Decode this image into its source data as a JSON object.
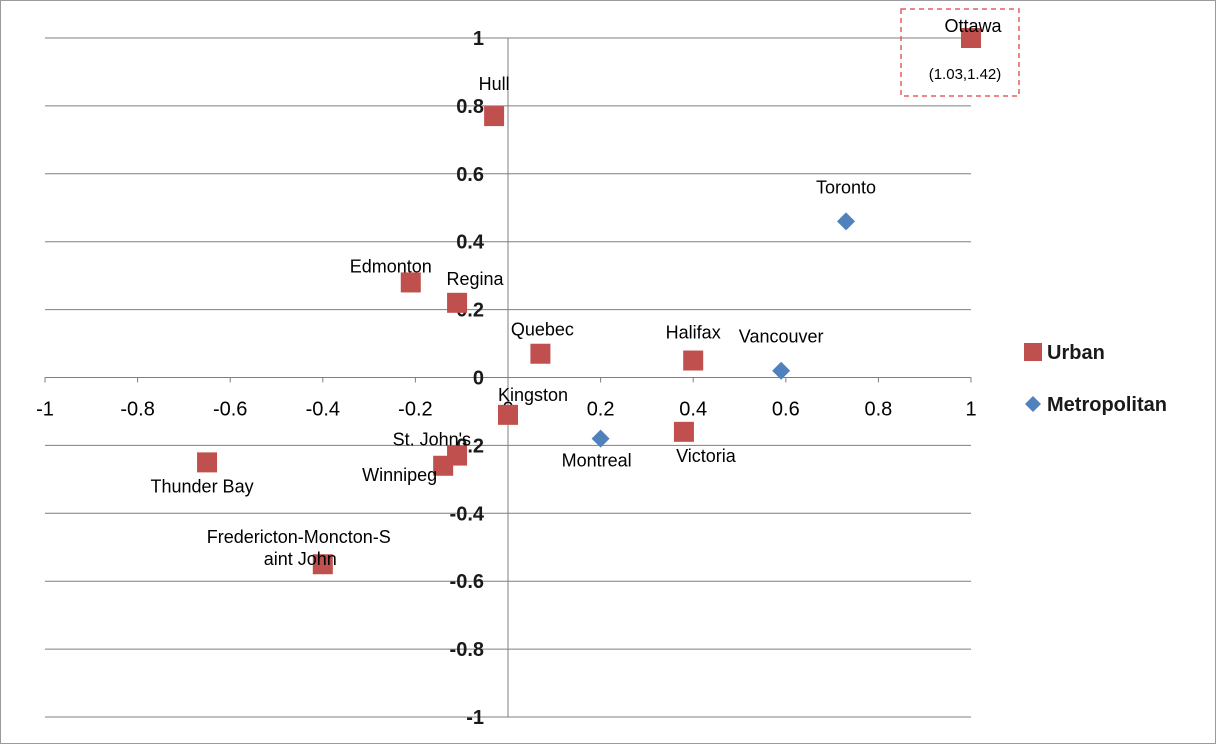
{
  "chart_data": {
    "type": "scatter",
    "title": "",
    "xlabel": "",
    "ylabel": "",
    "xlim": [
      -1,
      1
    ],
    "ylim": [
      -1,
      1
    ],
    "x_ticks": [
      "-1",
      "-0.8",
      "-0.6",
      "-0.4",
      "-0.2",
      "0",
      "0.2",
      "0.4",
      "0.6",
      "0.8",
      "1"
    ],
    "y_ticks": [
      "1",
      "0.8",
      "0.6",
      "0.4",
      "0.2",
      "0",
      "-0.2",
      "-0.4",
      "-0.6",
      "-0.8",
      "-1"
    ],
    "grid": "horizontal",
    "legend_position": "right",
    "series": [
      {
        "name": "Urban",
        "marker": "square",
        "color": "#c0504d",
        "points": [
          {
            "label": "Ottawa",
            "x": 1.0,
            "y": 1.0
          },
          {
            "label": "Hull",
            "x": -0.03,
            "y": 0.77
          },
          {
            "label": "Edmonton",
            "x": -0.21,
            "y": 0.28
          },
          {
            "label": "Regina",
            "x": -0.11,
            "y": 0.22
          },
          {
            "label": "Quebec",
            "x": 0.07,
            "y": 0.07
          },
          {
            "label": "Halifax",
            "x": 0.4,
            "y": 0.05
          },
          {
            "label": "Kingston",
            "x": 0.0,
            "y": -0.11
          },
          {
            "label": "Victoria",
            "x": 0.38,
            "y": -0.16
          },
          {
            "label": "St. John's",
            "x": -0.11,
            "y": -0.23
          },
          {
            "label": "Winnipeg",
            "x": -0.14,
            "y": -0.26
          },
          {
            "label": "Thunder Bay",
            "x": -0.65,
            "y": -0.25
          },
          {
            "label": "Fredericton-Moncton-S\naint John",
            "x": -0.4,
            "y": -0.55
          }
        ]
      },
      {
        "name": "Metropolitan",
        "marker": "diamond",
        "color": "#4f81bd",
        "points": [
          {
            "label": "Toronto",
            "x": 0.73,
            "y": 0.46
          },
          {
            "label": "Vancouver",
            "x": 0.59,
            "y": 0.02
          },
          {
            "label": "Montreal",
            "x": 0.2,
            "y": -0.18
          }
        ]
      }
    ],
    "annotations": [
      {
        "text": "(1.03,1.42)",
        "near": "Ottawa",
        "boxed": true
      }
    ]
  }
}
